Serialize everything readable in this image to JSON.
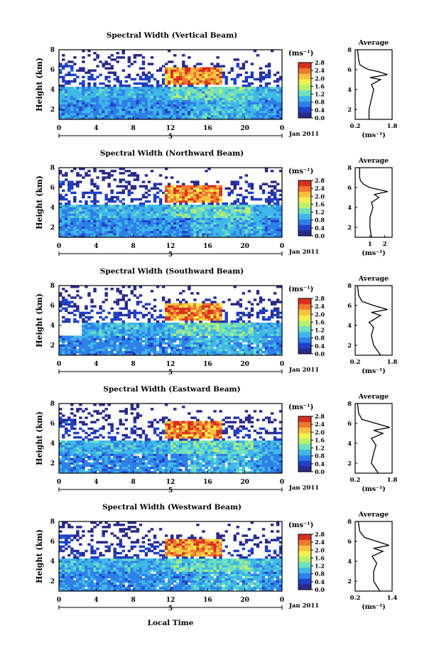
{
  "figure": {
    "xlabel_bottom": "Local Time",
    "date_label": "Jan 2011",
    "colorbar_unit": "(ms⁻¹)",
    "avg_title": "Average",
    "avg_unit": "(ms⁻¹)",
    "ylabel": "Height (km)"
  },
  "chart_data": [
    {
      "type": "heatmap",
      "title": "Spectral Width (Vertical Beam)",
      "x_ticks": [
        "0",
        "4",
        "8",
        "12",
        "16",
        "20",
        "0"
      ],
      "x_day_label": "5",
      "y_ticks": [
        "2",
        "4",
        "6",
        "8"
      ],
      "xlim": [
        0,
        24
      ],
      "ylim": [
        1,
        8
      ],
      "colorbar_ticks": [
        "0.0",
        "0.4",
        "0.8",
        "1.2",
        "1.6",
        "2.0",
        "2.4",
        "2.8"
      ],
      "colorbar_range": [
        0.0,
        2.8
      ],
      "average_profile": {
        "xlim": [
          0.2,
          1.8
        ],
        "x_ticks": [
          "0.2",
          "1.8"
        ],
        "y_ticks": [
          "2",
          "4",
          "6",
          "8"
        ],
        "ylim": [
          1,
          8
        ],
        "height_km": [
          1.0,
          2.0,
          3.0,
          4.0,
          4.5,
          5.0,
          5.2,
          5.5,
          5.8,
          6.0,
          6.2,
          6.5,
          7.0,
          8.0
        ],
        "width_ms": [
          0.8,
          0.8,
          0.9,
          1.0,
          0.9,
          1.3,
          0.85,
          1.6,
          1.2,
          0.8,
          0.6,
          0.4,
          0.35,
          0.3
        ]
      }
    },
    {
      "type": "heatmap",
      "title": "Spectral Width (Northward Beam)",
      "x_ticks": [
        "0",
        "4",
        "8",
        "12",
        "16",
        "20",
        "0"
      ],
      "x_day_label": "5",
      "y_ticks": [
        "2",
        "4",
        "6",
        "8"
      ],
      "xlim": [
        0,
        24
      ],
      "ylim": [
        1,
        8
      ],
      "colorbar_ticks": [
        "0.0",
        "0.4",
        "0.8",
        "1.2",
        "1.6",
        "2.0",
        "2.4",
        "2.8"
      ],
      "colorbar_range": [
        0.0,
        2.8
      ],
      "average_profile": {
        "xlim": [
          0,
          2.5
        ],
        "x_ticks": [
          "1",
          "2"
        ],
        "y_ticks": [
          "2",
          "4",
          "6",
          "8"
        ],
        "ylim": [
          1,
          8
        ],
        "height_km": [
          1.0,
          2.0,
          3.0,
          4.0,
          4.5,
          5.0,
          5.3,
          5.6,
          6.0,
          6.3,
          6.6,
          7.0,
          8.0
        ],
        "width_ms": [
          1.1,
          1.0,
          1.0,
          1.2,
          1.1,
          1.6,
          1.3,
          2.2,
          1.0,
          0.6,
          0.4,
          0.3,
          0.3
        ]
      }
    },
    {
      "type": "heatmap",
      "title": "Spectral Width (Southward Beam)",
      "x_ticks": [
        "0",
        "4",
        "8",
        "12",
        "16",
        "20",
        "0"
      ],
      "x_day_label": "5",
      "y_ticks": [
        "2",
        "4",
        "6",
        "8"
      ],
      "xlim": [
        0,
        24
      ],
      "ylim": [
        1,
        8
      ],
      "colorbar_ticks": [
        "0.0",
        "0.4",
        "0.8",
        "1.2",
        "1.6",
        "2.0",
        "2.4",
        "2.8"
      ],
      "colorbar_range": [
        0.0,
        2.8
      ],
      "average_profile": {
        "xlim": [
          0.2,
          1.8
        ],
        "x_ticks": [
          "0.2",
          "1.8"
        ],
        "y_ticks": [
          "2",
          "4",
          "6",
          "8"
        ],
        "ylim": [
          1,
          8
        ],
        "height_km": [
          1.0,
          2.0,
          3.0,
          3.8,
          4.3,
          5.0,
          5.3,
          5.6,
          6.0,
          6.4,
          7.0,
          8.0
        ],
        "width_ms": [
          1.3,
          1.0,
          0.9,
          1.0,
          0.8,
          1.3,
          0.9,
          1.6,
          1.0,
          0.5,
          0.35,
          0.3
        ]
      }
    },
    {
      "type": "heatmap",
      "title": "Spectral Width (Eastward Beam)",
      "x_ticks": [
        "0",
        "4",
        "8",
        "12",
        "16",
        "20",
        "0"
      ],
      "x_day_label": "5",
      "y_ticks": [
        "2",
        "4",
        "6",
        "8"
      ],
      "xlim": [
        0,
        24
      ],
      "ylim": [
        1,
        8
      ],
      "colorbar_ticks": [
        "0.0",
        "0.4",
        "0.8",
        "1.2",
        "1.6",
        "2.0",
        "2.4",
        "2.8"
      ],
      "colorbar_range": [
        0.0,
        2.8
      ],
      "average_profile": {
        "xlim": [
          0.2,
          1.8
        ],
        "x_ticks": [
          "0.2",
          "1.8"
        ],
        "y_ticks": [
          "2",
          "4",
          "6",
          "8"
        ],
        "ylim": [
          1,
          8
        ],
        "height_km": [
          1.0,
          2.0,
          3.0,
          3.8,
          4.5,
          5.0,
          5.3,
          5.6,
          6.0,
          6.4,
          7.0,
          8.0
        ],
        "width_ms": [
          1.2,
          0.9,
          1.0,
          1.1,
          0.9,
          1.4,
          1.0,
          1.7,
          1.1,
          0.5,
          0.35,
          0.3
        ]
      }
    },
    {
      "type": "heatmap",
      "title": "Spectral Width (Westward Beam)",
      "x_ticks": [
        "0",
        "4",
        "8",
        "12",
        "16",
        "20",
        "0"
      ],
      "x_day_label": "5",
      "y_ticks": [
        "2",
        "4",
        "6",
        "8"
      ],
      "xlim": [
        0,
        24
      ],
      "ylim": [
        1,
        8
      ],
      "colorbar_ticks": [
        "0.0",
        "0.4",
        "0.8",
        "1.2",
        "1.6",
        "2.0",
        "2.4",
        "2.8"
      ],
      "colorbar_range": [
        0.0,
        2.8
      ],
      "average_profile": {
        "xlim": [
          0.2,
          1.4
        ],
        "x_ticks": [
          "0.2",
          "1.4"
        ],
        "y_ticks": [
          "2",
          "4",
          "6",
          "8"
        ],
        "ylim": [
          1,
          8
        ],
        "height_km": [
          1.0,
          2.0,
          3.0,
          3.8,
          4.5,
          5.0,
          5.3,
          5.6,
          6.0,
          6.4,
          7.0,
          8.0
        ],
        "width_ms": [
          1.0,
          0.8,
          0.8,
          0.9,
          0.75,
          1.1,
          0.8,
          1.3,
          0.9,
          0.5,
          0.35,
          0.3
        ]
      }
    }
  ],
  "colors": {
    "colormap": [
      "#2a2a8a",
      "#2040c8",
      "#2f7fe8",
      "#3fb8e8",
      "#6fe0c0",
      "#b8f070",
      "#f0f050",
      "#f8c040",
      "#f07830",
      "#d83020"
    ]
  }
}
